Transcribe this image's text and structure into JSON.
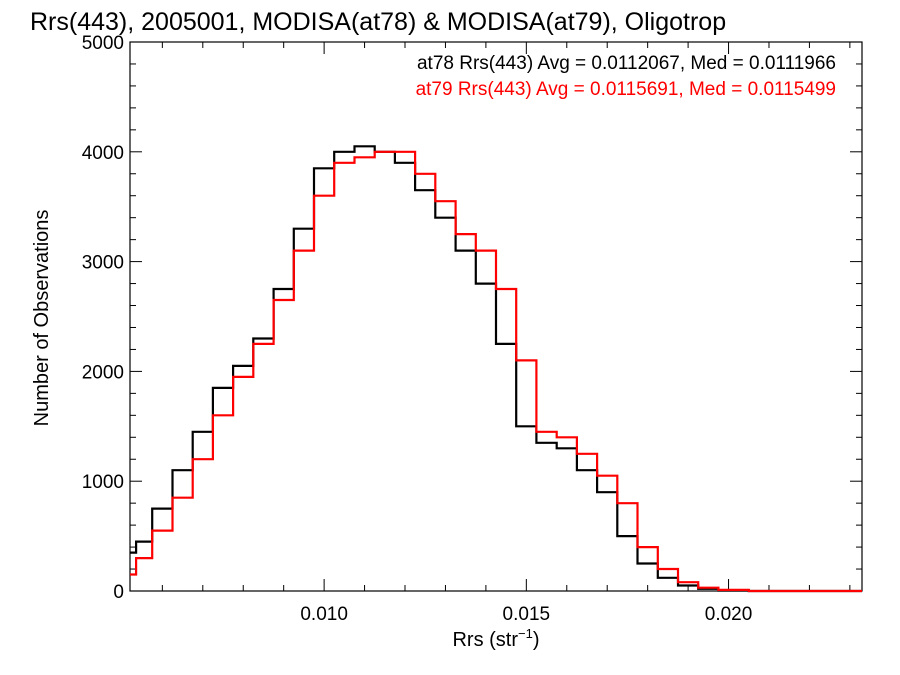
{
  "chart_data": {
    "type": "line",
    "title": "Rrs(443), 2005001, MODISA(at78) & MODISA(at79), Oligotrop",
    "xlabel": "Rrs (str",
    "xlabel_sup": "−1",
    "xlabel_close": ")",
    "ylabel": "Number of Observations",
    "xlim": [
      0.0052,
      0.0233
    ],
    "ylim": [
      0,
      5000
    ],
    "xticks": [
      0.01,
      0.015,
      0.02
    ],
    "xtick_labels": [
      "0.010",
      "0.015",
      "0.020"
    ],
    "yticks": [
      0,
      1000,
      2000,
      3000,
      4000,
      5000
    ],
    "ytick_labels": [
      "0",
      "1000",
      "2000",
      "3000",
      "4000",
      "5000"
    ],
    "grid": false,
    "legend": "top-right",
    "series": [
      {
        "name": "at78",
        "color": "#000000",
        "legend_text": "at78 Rrs(443) Avg = 0.0112067, Med = 0.0111966",
        "x": [
          0.0052,
          0.0055,
          0.006,
          0.0065,
          0.007,
          0.0075,
          0.008,
          0.0085,
          0.009,
          0.0095,
          0.01,
          0.0105,
          0.011,
          0.0115,
          0.012,
          0.0125,
          0.013,
          0.0135,
          0.014,
          0.0145,
          0.015,
          0.0155,
          0.016,
          0.0165,
          0.017,
          0.0175,
          0.018,
          0.0185,
          0.019,
          0.0195,
          0.02,
          0.021,
          0.022,
          0.0233
        ],
        "y": [
          350,
          450,
          750,
          1100,
          1450,
          1850,
          2050,
          2300,
          2750,
          3300,
          3850,
          4000,
          4050,
          4000,
          3900,
          3650,
          3400,
          3100,
          2800,
          2250,
          1500,
          1350,
          1300,
          1100,
          900,
          500,
          250,
          120,
          50,
          20,
          5,
          0,
          0,
          0
        ]
      },
      {
        "name": "at79",
        "color": "#ff0000",
        "legend_text": "at79 Rrs(443) Avg = 0.0115691, Med = 0.0115499",
        "x": [
          0.0052,
          0.0055,
          0.006,
          0.0065,
          0.007,
          0.0075,
          0.008,
          0.0085,
          0.009,
          0.0095,
          0.01,
          0.0105,
          0.011,
          0.0115,
          0.012,
          0.0125,
          0.013,
          0.0135,
          0.014,
          0.0145,
          0.015,
          0.0155,
          0.016,
          0.0165,
          0.017,
          0.0175,
          0.018,
          0.0185,
          0.019,
          0.0195,
          0.02,
          0.021,
          0.022,
          0.0233
        ],
        "y": [
          150,
          300,
          550,
          850,
          1200,
          1600,
          1950,
          2250,
          2650,
          3100,
          3600,
          3900,
          3950,
          4000,
          4000,
          3800,
          3550,
          3250,
          3100,
          2750,
          2100,
          1450,
          1400,
          1250,
          1050,
          800,
          400,
          200,
          80,
          30,
          10,
          0,
          0,
          0
        ]
      }
    ]
  }
}
